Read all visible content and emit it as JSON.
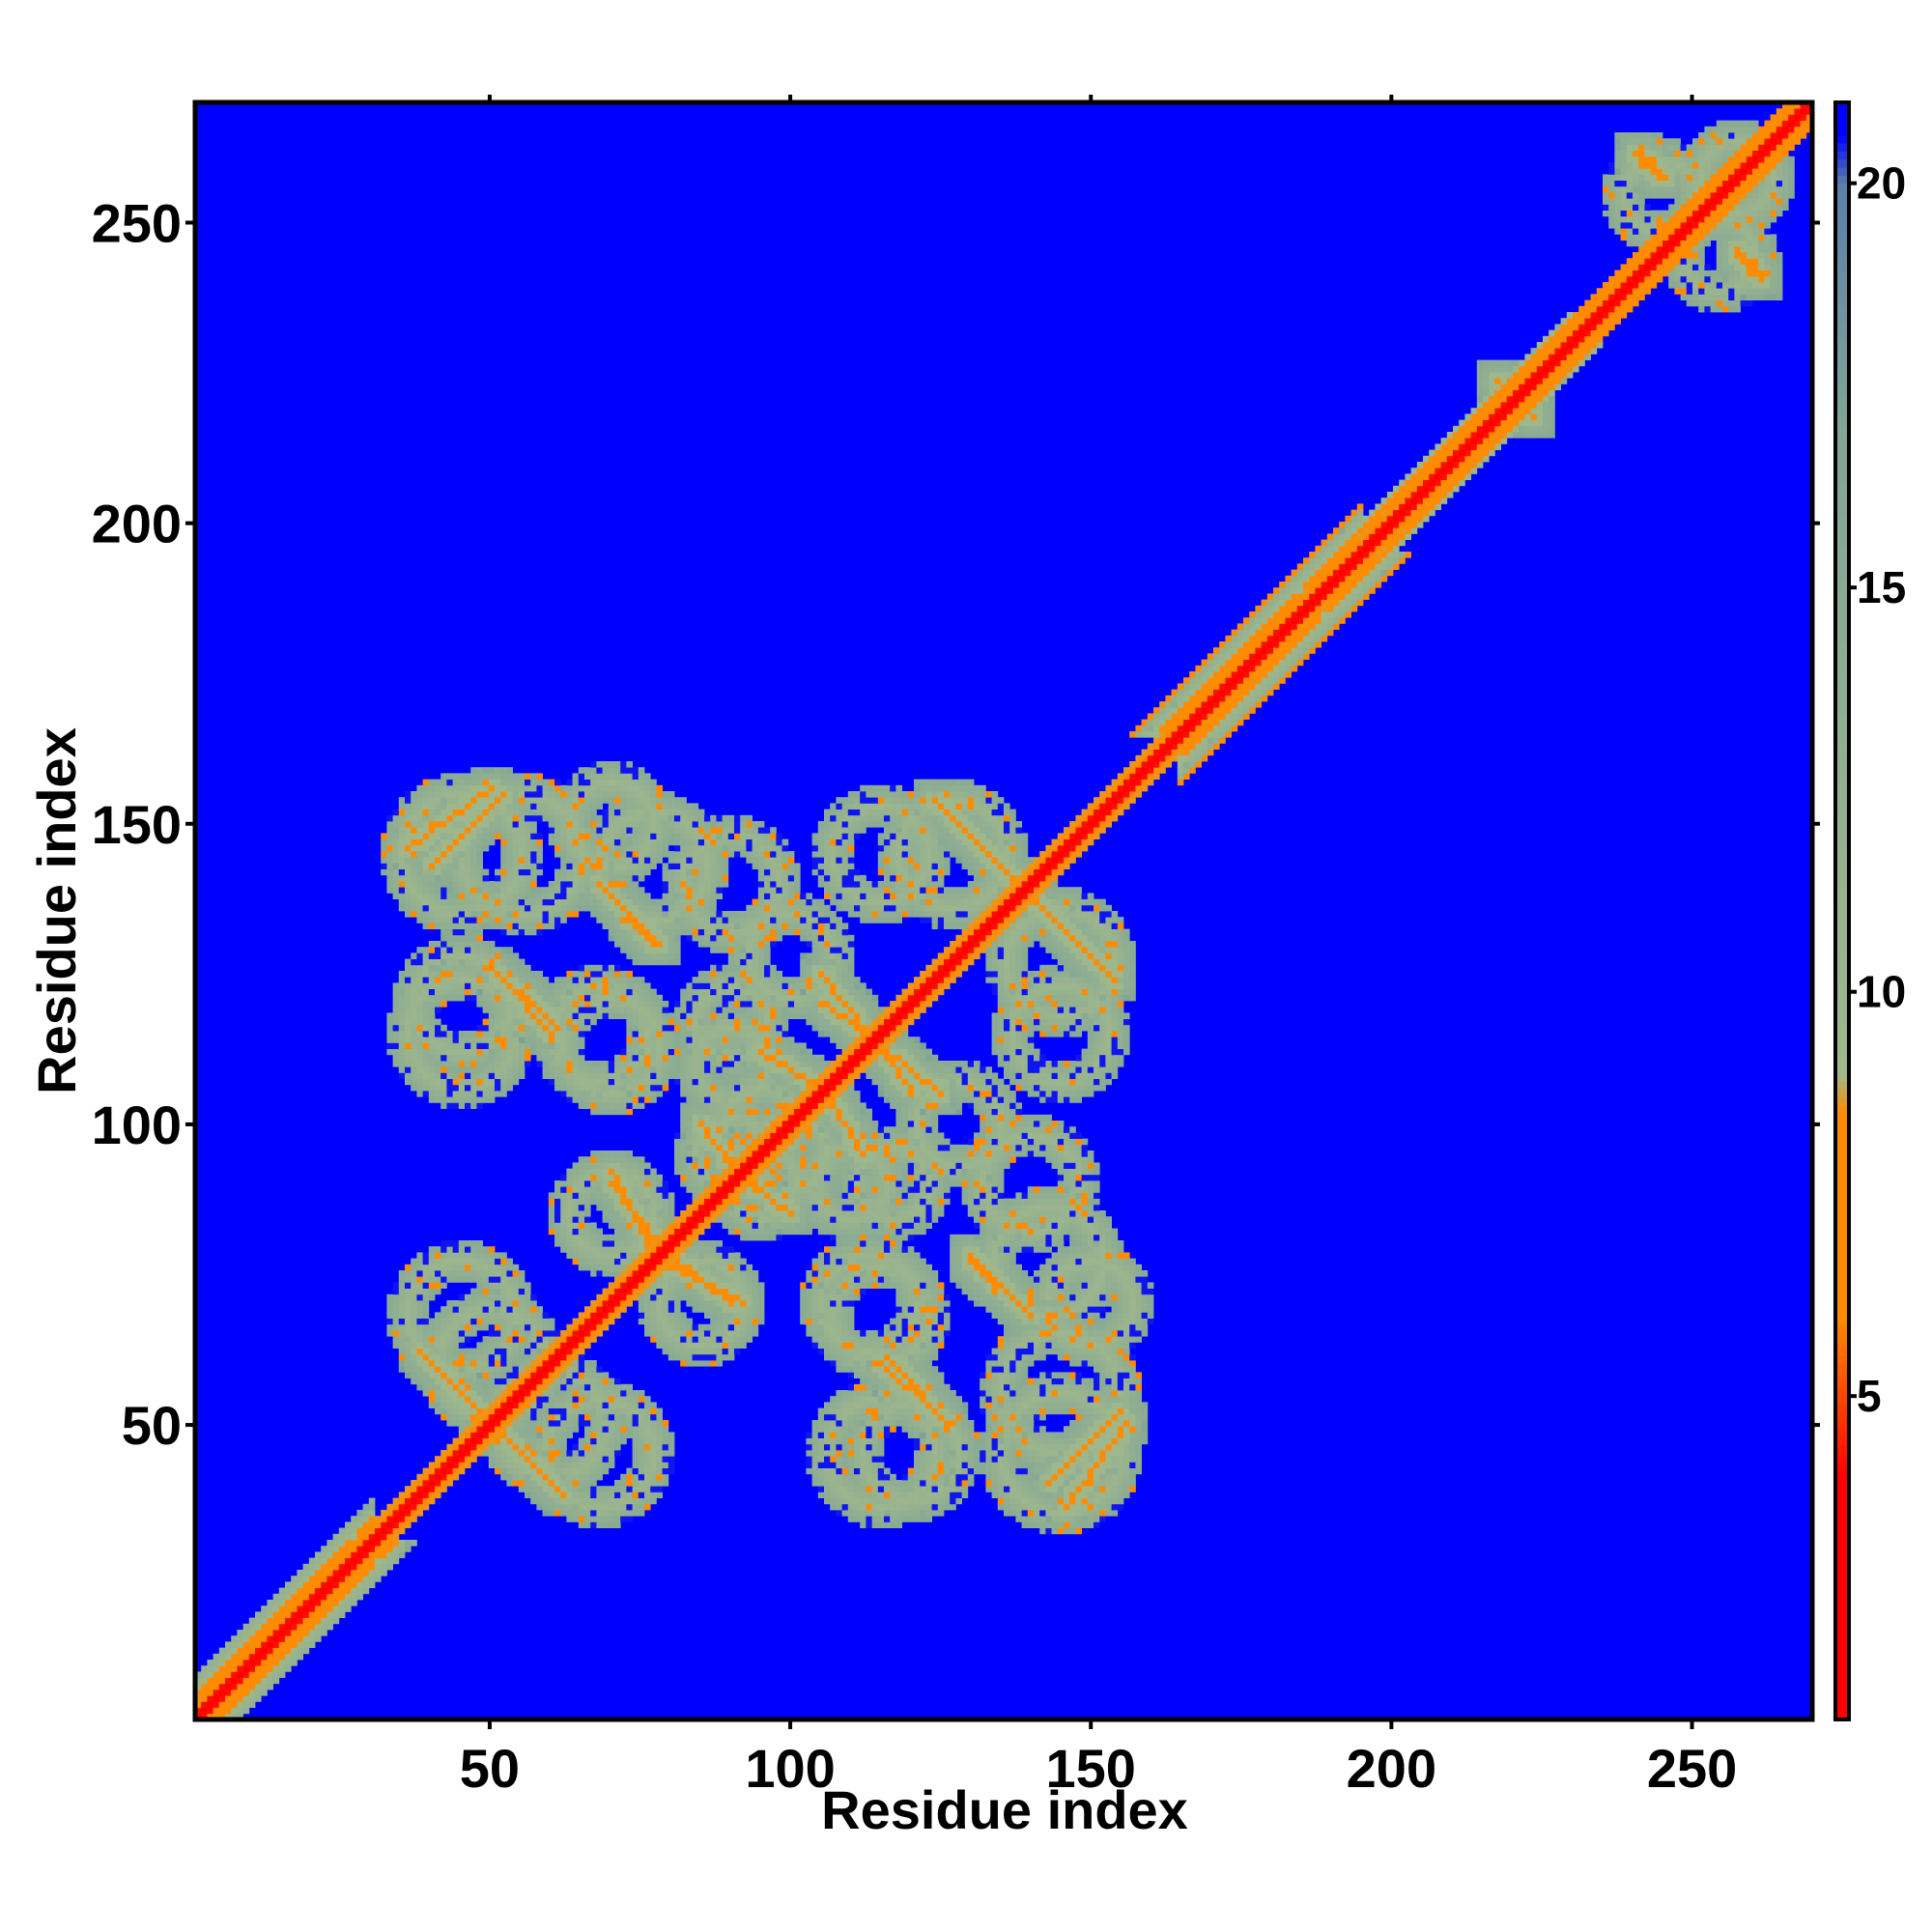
{
  "chart_data": {
    "type": "heatmap",
    "title": "",
    "xlabel": "Residue index",
    "ylabel": "Residue index",
    "xlim": [
      1,
      270
    ],
    "ylim": [
      1,
      270
    ],
    "x_ticks": [
      50,
      100,
      150,
      200,
      250
    ],
    "y_ticks": [
      50,
      100,
      150,
      200,
      250
    ],
    "x_tick_labels": [
      "50",
      "100",
      "150",
      "200",
      "250"
    ],
    "y_tick_labels": [
      "50",
      "100",
      "150",
      "200",
      "250"
    ],
    "matrix_size": 270,
    "value_range": [
      1,
      21
    ],
    "colorbar": {
      "ticks": [
        5,
        10,
        15,
        20
      ],
      "tick_labels": [
        "5",
        "10",
        "15",
        "20"
      ],
      "colors": {
        "near": "#ff0000",
        "mid": "#ff8c00",
        "contact": "#a0b88c",
        "far": "#0000ff",
        "cap": "#5b7faa"
      }
    },
    "diagonal_band": {
      "near_value": 2,
      "halfwidth_residues": 3
    },
    "helix_segments": [
      {
        "start": 5,
        "end": 30,
        "halfwidth": 7
      },
      {
        "start": 165,
        "end": 195,
        "halfwidth": 8
      },
      {
        "start": 200,
        "end": 230,
        "halfwidth": 5
      },
      {
        "start": 230,
        "end": 268,
        "halfwidth": 4
      }
    ],
    "contact_lines": [
      {
        "x1": 40,
        "y1": 60,
        "x2": 62,
        "y2": 38
      },
      {
        "x1": 36,
        "y1": 146,
        "x2": 50,
        "y2": 156
      },
      {
        "x1": 68,
        "y1": 140,
        "x2": 77,
        "y2": 130
      },
      {
        "x1": 51,
        "y1": 125,
        "x2": 60,
        "y2": 115
      },
      {
        "x1": 70,
        "y1": 90,
        "x2": 78,
        "y2": 80
      },
      {
        "x1": 78,
        "y1": 77,
        "x2": 92,
        "y2": 70
      },
      {
        "x1": 106,
        "y1": 120,
        "x2": 125,
        "y2": 105
      },
      {
        "x1": 124,
        "y1": 154,
        "x2": 150,
        "y2": 128
      },
      {
        "x1": 130,
        "y1": 78,
        "x2": 138,
        "y2": 70
      },
      {
        "x1": 117,
        "y1": 60,
        "x2": 126,
        "y2": 50
      },
      {
        "x1": 143,
        "y1": 40,
        "x2": 155,
        "y2": 52
      },
      {
        "x1": 90,
        "y1": 92,
        "x2": 100,
        "y2": 85
      },
      {
        "x1": 95,
        "y1": 112,
        "x2": 105,
        "y2": 106
      },
      {
        "x1": 241,
        "y1": 262,
        "x2": 245,
        "y2": 258
      },
      {
        "x1": 258,
        "y1": 246,
        "x2": 262,
        "y2": 242
      },
      {
        "x1": 218,
        "y1": 224,
        "x2": 224,
        "y2": 218
      }
    ],
    "contact_rings": [
      {
        "cx": 45,
        "cy": 145,
        "r": 10
      },
      {
        "cx": 77,
        "cy": 143,
        "r": 9
      },
      {
        "cx": 127,
        "cy": 145,
        "r": 9
      },
      {
        "cx": 45,
        "cy": 115,
        "r": 9
      },
      {
        "cx": 70,
        "cy": 113,
        "r": 8
      },
      {
        "cx": 90,
        "cy": 117,
        "r": 6
      },
      {
        "cx": 100,
        "cy": 128,
        "r": 7
      },
      {
        "cx": 145,
        "cy": 115,
        "r": 8
      },
      {
        "cx": 90,
        "cy": 95,
        "r": 6
      },
      {
        "cx": 100,
        "cy": 95,
        "r": 6
      },
      {
        "cx": 110,
        "cy": 90,
        "r": 6
      },
      {
        "cx": 45,
        "cy": 68,
        "r": 9
      },
      {
        "cx": 115,
        "cy": 68,
        "r": 8
      },
      {
        "cx": 140,
        "cy": 90,
        "r": 8
      },
      {
        "cx": 60,
        "cy": 50,
        "r": 9
      },
      {
        "cx": 120,
        "cy": 45,
        "r": 8
      },
      {
        "cx": 145,
        "cy": 55,
        "r": 10
      },
      {
        "cx": 70,
        "cy": 85,
        "r": 7
      },
      {
        "cx": 150,
        "cy": 70,
        "r": 7
      },
      {
        "cx": 245,
        "cy": 255,
        "r": 6
      },
      {
        "cx": 258,
        "cy": 258,
        "r": 6
      }
    ],
    "grid": false,
    "legend": "colorbar-right"
  }
}
